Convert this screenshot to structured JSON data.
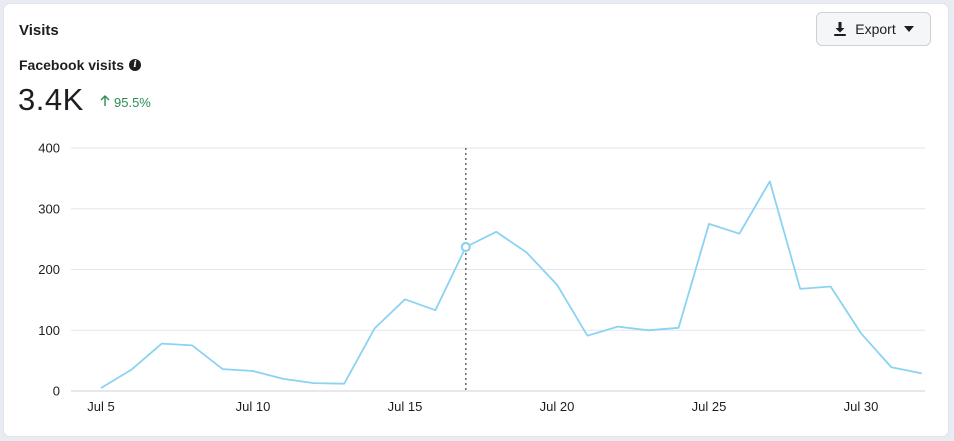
{
  "card": {
    "title": "Visits",
    "export_label": "Export",
    "metric_label": "Facebook visits",
    "metric_value": "3.4K",
    "change_value": "95.5%",
    "change_color": "#2e8b57"
  },
  "chart_data": {
    "type": "line",
    "title": "",
    "xlabel": "",
    "ylabel": "",
    "ylim": [
      0,
      400
    ],
    "yticks": [
      0,
      100,
      200,
      300,
      400
    ],
    "grid": true,
    "line_color": "#8bd3f2",
    "x": [
      "Jul 5",
      "Jul 6",
      "Jul 7",
      "Jul 8",
      "Jul 9",
      "Jul 10",
      "Jul 11",
      "Jul 12",
      "Jul 13",
      "Jul 14",
      "Jul 15",
      "Jul 16",
      "Jul 17",
      "Jul 18",
      "Jul 19",
      "Jul 20",
      "Jul 21",
      "Jul 22",
      "Jul 23",
      "Jul 24",
      "Jul 25",
      "Jul 26",
      "Jul 27",
      "Jul 28",
      "Jul 29",
      "Jul 30",
      "Jul 31",
      "Aug 1"
    ],
    "xtick_labels": [
      "Jul 5",
      "Jul 10",
      "Jul 15",
      "Jul 20",
      "Jul 25",
      "Jul 30"
    ],
    "series": [
      {
        "values": [
          5,
          35,
          78,
          75,
          36,
          33,
          20,
          13,
          12,
          103,
          151,
          133,
          237,
          262,
          228,
          175,
          91,
          106,
          100,
          104,
          275,
          259,
          345,
          168,
          172,
          95,
          39,
          29
        ]
      }
    ],
    "highlight_index": 12
  }
}
